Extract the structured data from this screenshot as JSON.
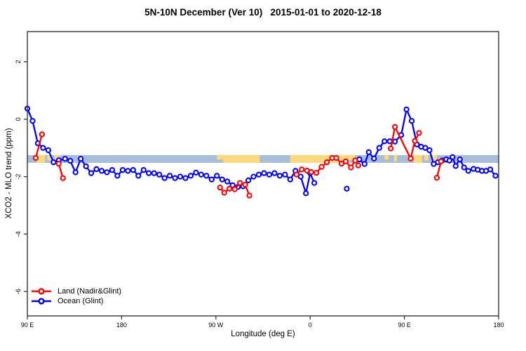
{
  "window": {
    "background": "#ffffff"
  },
  "chart_data": {
    "type": "line",
    "title": "5N-10N December (Ver 10)   2015-01-01 to 2020-12-18",
    "xlabel": "Longitude (deg E)",
    "ylabel": "XCO2 - MLO trend (ppm)",
    "xlim": [
      90,
      540
    ],
    "ylim": [
      -6.85,
      3.05
    ],
    "grid": false,
    "frame_color": "#333333",
    "x_ticks": [
      {
        "pos": 90,
        "label": "90 E"
      },
      {
        "pos": 180,
        "label": "180"
      },
      {
        "pos": 270,
        "label": "90 W"
      },
      {
        "pos": 360,
        "label": "0"
      },
      {
        "pos": 450,
        "label": "90 E"
      },
      {
        "pos": 540,
        "label": "180"
      }
    ],
    "y_ticks": [
      {
        "pos": 2,
        "label": "2"
      },
      {
        "pos": 0,
        "label": "0"
      },
      {
        "pos": -2,
        "label": "-2"
      },
      {
        "pos": -4,
        "label": "-4"
      },
      {
        "pos": -6,
        "label": "-6"
      }
    ],
    "map_band": {
      "description": "world-map strip of the 5N-10N latitude zone drawn across the plot",
      "value_range": [
        -1.25,
        -1.52
      ],
      "ocean_color": "#a7bdd9",
      "land_color": "#fbd97e",
      "land_patches": [
        {
          "lon_from": 99,
          "lon_to": 107,
          "h": 1.0
        },
        {
          "lon_from": 109,
          "lon_to": 113,
          "h": 0.7
        },
        {
          "lon_from": 116,
          "lon_to": 121,
          "h": 0.8
        },
        {
          "lon_from": 271,
          "lon_to": 277,
          "h": 0.6
        },
        {
          "lon_from": 277,
          "lon_to": 312,
          "h": 1.0
        },
        {
          "lon_from": 341,
          "lon_to": 389,
          "h": 1.0
        },
        {
          "lon_from": 389,
          "lon_to": 403,
          "h": 0.65
        },
        {
          "lon_from": 431,
          "lon_to": 435,
          "h": 0.6
        },
        {
          "lon_from": 440,
          "lon_to": 443,
          "h": 0.8
        },
        {
          "lon_from": 459,
          "lon_to": 467,
          "h": 1.0
        },
        {
          "lon_from": 469,
          "lon_to": 473,
          "h": 0.7
        },
        {
          "lon_from": 476,
          "lon_to": 481,
          "h": 0.8
        }
      ]
    },
    "legend": {
      "position": "bottom-left"
    },
    "series": [
      {
        "name": "Land (Nadir&Glint)",
        "color": "#ff0000",
        "marker": "open-circle",
        "segments": [
          [
            [
              98,
              -1.35
            ],
            [
              104,
              -0.53
            ]
          ],
          [
            [
              120,
              -1.55
            ],
            [
              124,
              -2.05
            ]
          ],
          [
            [
              274,
              -2.38
            ],
            [
              278,
              -2.56
            ],
            [
              283,
              -2.42
            ],
            [
              288,
              -2.44
            ],
            [
              293,
              -2.22
            ],
            [
              298,
              -2.28
            ],
            [
              302,
              -2.66
            ]
          ],
          [
            [
              347,
              -1.93
            ],
            [
              352,
              -1.75
            ],
            [
              357,
              -1.79
            ],
            [
              361,
              -1.84
            ],
            [
              366,
              -1.87
            ],
            [
              371,
              -1.66
            ],
            [
              376,
              -1.5
            ],
            [
              381,
              -1.35
            ],
            [
              385,
              -1.35
            ],
            [
              390,
              -1.55
            ],
            [
              394,
              -1.47
            ],
            [
              399,
              -1.68
            ],
            [
              403,
              -1.44
            ],
            [
              406,
              -1.61
            ]
          ],
          [
            [
              437,
              -1.02
            ],
            [
              441,
              -0.27
            ],
            [
              456,
              -1.37
            ],
            [
              460,
              -0.76
            ],
            [
              464,
              -0.48
            ]
          ],
          [
            [
              481,
              -2.04
            ],
            [
              485,
              -1.47
            ]
          ]
        ]
      },
      {
        "name": "Ocean (Glint)",
        "color": "#0000ff",
        "marker": "open-circle",
        "segments": [
          [
            [
              90,
              0.37
            ],
            [
              95,
              -0.06
            ],
            [
              100,
              -0.84
            ],
            [
              105,
              -1.0
            ],
            [
              110,
              -1.08
            ],
            [
              115,
              -1.5
            ],
            [
              120,
              -1.43
            ],
            [
              126,
              -1.38
            ],
            [
              131,
              -1.45
            ],
            [
              136,
              -1.85
            ],
            [
              141,
              -1.38
            ],
            [
              146,
              -1.64
            ],
            [
              151,
              -1.88
            ],
            [
              156,
              -1.74
            ],
            [
              161,
              -1.8
            ],
            [
              166,
              -1.85
            ],
            [
              171,
              -1.77
            ],
            [
              176,
              -1.97
            ],
            [
              181,
              -1.77
            ],
            [
              186,
              -1.8
            ],
            [
              191,
              -1.77
            ],
            [
              196,
              -1.97
            ],
            [
              201,
              -1.77
            ],
            [
              206,
              -1.88
            ],
            [
              211,
              -1.88
            ],
            [
              216,
              -1.93
            ],
            [
              221,
              -2.05
            ],
            [
              226,
              -1.97
            ],
            [
              231,
              -2.05
            ],
            [
              236,
              -2.0
            ],
            [
              241,
              -2.05
            ],
            [
              246,
              -1.97
            ],
            [
              251,
              -1.86
            ],
            [
              256,
              -1.93
            ],
            [
              261,
              -1.97
            ],
            [
              266,
              -2.1
            ],
            [
              271,
              -1.97
            ],
            [
              276,
              -2.1
            ],
            [
              281,
              -2.17
            ],
            [
              286,
              -2.3
            ],
            [
              291,
              -2.36
            ],
            [
              296,
              -2.34
            ],
            [
              301,
              -2.13
            ],
            [
              306,
              -2.0
            ],
            [
              311,
              -1.93
            ],
            [
              316,
              -1.88
            ],
            [
              321,
              -1.93
            ],
            [
              326,
              -1.88
            ],
            [
              331,
              -1.97
            ],
            [
              336,
              -1.93
            ],
            [
              341,
              -2.1
            ],
            [
              346,
              -1.8
            ],
            [
              351,
              -2.0
            ],
            [
              356,
              -2.58
            ],
            [
              360,
              -1.88
            ],
            [
              364,
              -2.22
            ]
          ],
          [
            [
              395,
              -2.42
            ]
          ],
          [
            [
              407,
              -1.4
            ],
            [
              412,
              -1.56
            ],
            [
              416,
              -1.15
            ],
            [
              421,
              -1.37
            ],
            [
              426,
              -1.0
            ],
            [
              431,
              -0.77
            ],
            [
              436,
              -0.77
            ],
            [
              441,
              -0.78
            ],
            [
              447,
              -0.55
            ],
            [
              452,
              0.34
            ],
            [
              457,
              -0.06
            ],
            [
              462,
              -0.88
            ],
            [
              466,
              -0.96
            ],
            [
              470,
              -1.0
            ],
            [
              474,
              -1.08
            ],
            [
              478,
              -1.56
            ],
            [
              482,
              -1.5
            ],
            [
              486,
              -1.44
            ],
            [
              490,
              -1.4
            ],
            [
              493,
              -1.44
            ],
            [
              496,
              -1.32
            ],
            [
              499,
              -1.63
            ],
            [
              503,
              -1.4
            ],
            [
              507,
              -1.68
            ],
            [
              511,
              -1.8
            ],
            [
              516,
              -1.73
            ],
            [
              520,
              -1.76
            ],
            [
              524,
              -1.8
            ],
            [
              528,
              -1.8
            ],
            [
              532,
              -1.75
            ],
            [
              537,
              -1.97
            ]
          ]
        ]
      }
    ]
  }
}
